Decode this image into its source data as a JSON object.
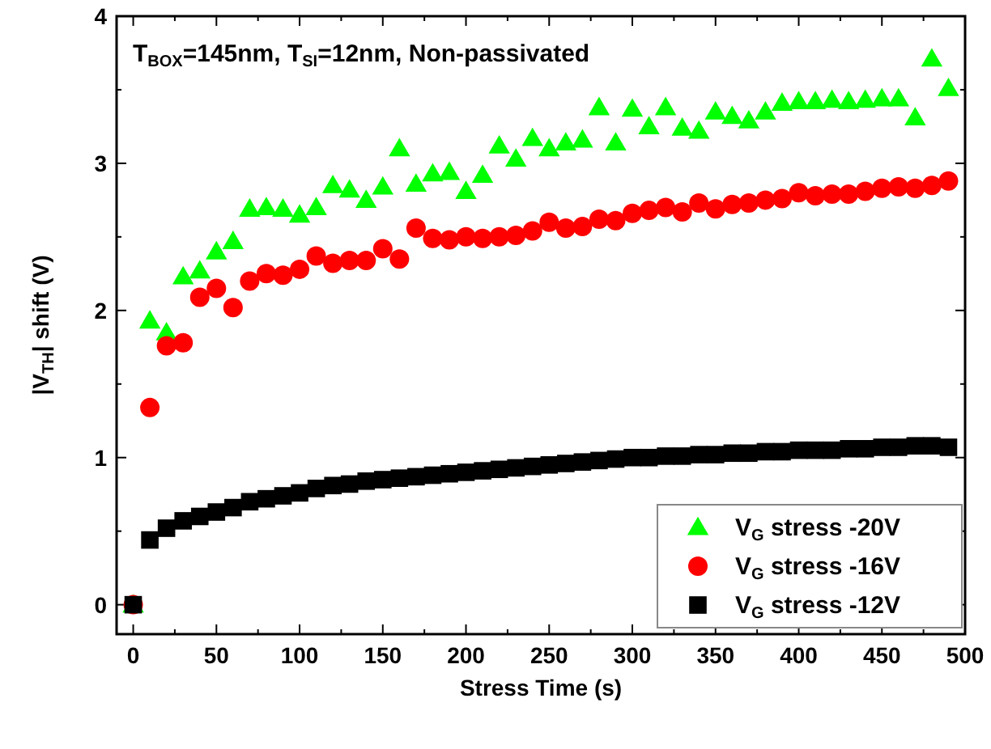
{
  "chart_data": {
    "type": "scatter",
    "xlabel": "Stress Time (s)",
    "ylabel": "|V$_{TH}$| shift (V)",
    "annotations": [
      "T$_{BOX}$=145nm, T$_{SI}$=12nm, Non-passivated"
    ],
    "x": [
      0,
      10,
      20,
      30,
      40,
      50,
      60,
      70,
      80,
      90,
      100,
      110,
      120,
      130,
      140,
      150,
      160,
      170,
      180,
      190,
      200,
      210,
      220,
      230,
      240,
      250,
      260,
      270,
      280,
      290,
      300,
      310,
      320,
      330,
      340,
      350,
      360,
      370,
      380,
      390,
      400,
      410,
      420,
      430,
      440,
      450,
      460,
      470,
      480,
      490
    ],
    "xlim": [
      -10,
      500
    ],
    "xticks": [
      0,
      50,
      100,
      150,
      200,
      250,
      300,
      350,
      400,
      450,
      500
    ],
    "ylim": [
      -0.2,
      4
    ],
    "yticks": [
      0,
      1,
      2,
      3,
      4
    ],
    "legend": "bottom right",
    "grid": false,
    "series": [
      {
        "name": "V$_{G}$ stress -20V",
        "color": "#00ff00",
        "marker": "triangle",
        "values": [
          0,
          1.93,
          1.85,
          2.23,
          2.27,
          2.4,
          2.47,
          2.69,
          2.7,
          2.69,
          2.65,
          2.7,
          2.85,
          2.82,
          2.75,
          2.84,
          3.1,
          2.86,
          2.93,
          2.94,
          2.81,
          2.92,
          3.12,
          3.03,
          3.17,
          3.1,
          3.14,
          3.16,
          3.38,
          3.14,
          3.37,
          3.25,
          3.38,
          3.24,
          3.22,
          3.35,
          3.32,
          3.29,
          3.35,
          3.41,
          3.42,
          3.42,
          3.43,
          3.42,
          3.43,
          3.44,
          3.44,
          3.31,
          3.71,
          3.51
        ]
      },
      {
        "name": "V$_{G}$ stress -16V",
        "color": "#ff0000",
        "marker": "circle",
        "values": [
          0,
          1.34,
          1.76,
          1.78,
          2.09,
          2.15,
          2.02,
          2.2,
          2.25,
          2.24,
          2.28,
          2.37,
          2.32,
          2.34,
          2.34,
          2.42,
          2.35,
          2.56,
          2.49,
          2.48,
          2.5,
          2.49,
          2.5,
          2.51,
          2.54,
          2.6,
          2.56,
          2.57,
          2.62,
          2.61,
          2.66,
          2.68,
          2.7,
          2.67,
          2.73,
          2.69,
          2.72,
          2.73,
          2.75,
          2.76,
          2.8,
          2.78,
          2.79,
          2.79,
          2.81,
          2.83,
          2.84,
          2.83,
          2.85,
          2.88
        ]
      },
      {
        "name": "V$_{G}$ stress -12V",
        "color": "#000000",
        "marker": "square",
        "values": [
          0,
          0.44,
          0.52,
          0.57,
          0.6,
          0.63,
          0.66,
          0.7,
          0.72,
          0.74,
          0.76,
          0.79,
          0.81,
          0.82,
          0.84,
          0.85,
          0.86,
          0.87,
          0.88,
          0.89,
          0.9,
          0.91,
          0.92,
          0.93,
          0.94,
          0.95,
          0.96,
          0.97,
          0.98,
          0.99,
          1.0,
          1.0,
          1.01,
          1.01,
          1.02,
          1.02,
          1.03,
          1.03,
          1.04,
          1.04,
          1.05,
          1.05,
          1.05,
          1.06,
          1.06,
          1.07,
          1.07,
          1.08,
          1.08,
          1.07
        ]
      }
    ]
  }
}
